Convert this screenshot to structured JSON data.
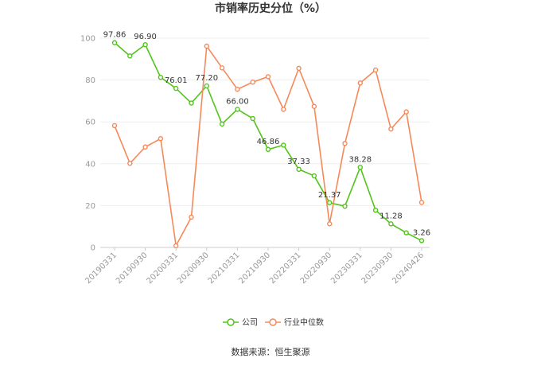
{
  "chart_data": {
    "type": "line",
    "title": "市销率历史分位（%）",
    "source": "数据来源：恒生聚源",
    "ylim": [
      0,
      100
    ],
    "yticks": [
      0,
      20,
      40,
      60,
      80,
      100
    ],
    "grid": true,
    "legend_position": "bottom",
    "x": [
      "20190331",
      "20190630",
      "20190930",
      "20191231",
      "20200331",
      "20200630",
      "20200930",
      "20201231",
      "20210331",
      "20210630",
      "20210930",
      "20211231",
      "20220331",
      "20220630",
      "20220930",
      "20221231",
      "20230331",
      "20230630",
      "20230930",
      "20231231",
      "20240426"
    ],
    "x_tick_labels": [
      "20190331",
      "20190930",
      "20200331",
      "20200930",
      "20210331",
      "20210930",
      "20220331",
      "20220930",
      "20230331",
      "20230930",
      "20240426"
    ],
    "series": [
      {
        "name": "公司",
        "color": "#52c41a",
        "values": [
          97.86,
          91.5,
          96.9,
          81.3,
          76.01,
          69.0,
          77.2,
          59.0,
          66.0,
          61.6,
          46.86,
          48.9,
          37.33,
          34.2,
          21.37,
          19.7,
          38.28,
          17.8,
          11.28,
          7.0,
          3.26
        ],
        "labels": [
          "97.86",
          "",
          "96.90",
          "",
          "76.01",
          "",
          "77.20",
          "",
          "66.00",
          "",
          "46.86",
          "",
          "37.33",
          "",
          "21.37",
          "",
          "38.28",
          "",
          "11.28",
          "",
          "3.26"
        ]
      },
      {
        "name": "行业中位数",
        "color": "#f5895a",
        "values": [
          58.2,
          40.2,
          48.0,
          52.0,
          0.8,
          14.5,
          96.2,
          85.8,
          75.6,
          79.0,
          81.6,
          66.0,
          85.6,
          67.4,
          11.3,
          49.7,
          78.6,
          84.8,
          56.6,
          64.8,
          21.5
        ]
      }
    ]
  }
}
